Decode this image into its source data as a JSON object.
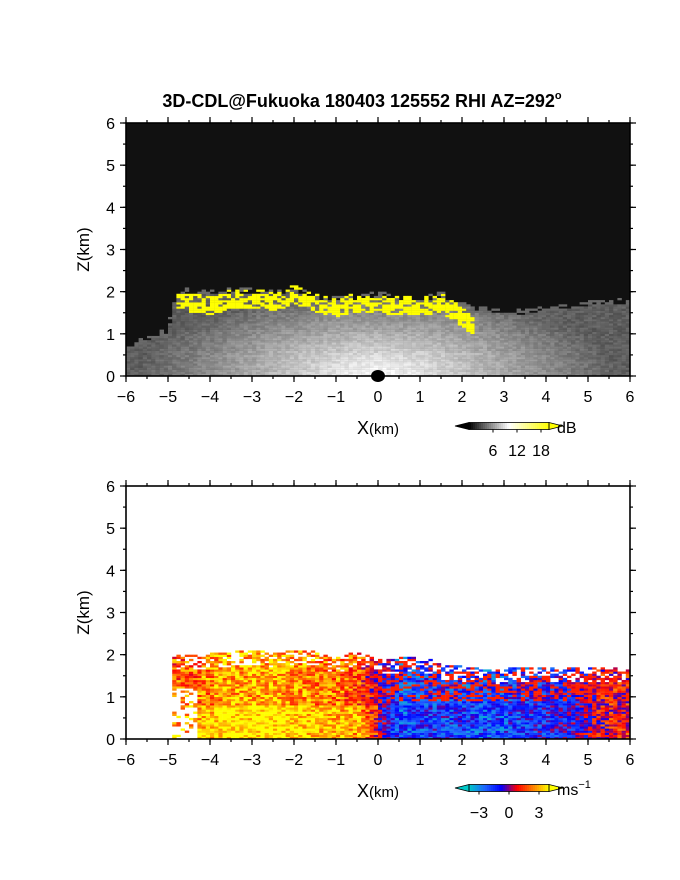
{
  "title": "3D-CDL@Fukuoka 180403 125552 RHI AZ=292",
  "title_degree_mark": "o",
  "chart_data": [
    {
      "type": "heatmap",
      "id": "snr",
      "xlabel_main": "X",
      "xlabel_unit": "(km)",
      "ylabel": "Z(km)",
      "xlim": [
        -6,
        6
      ],
      "ylim": [
        0,
        6
      ],
      "xticks": [
        -6,
        -5,
        -4,
        -3,
        -2,
        -1,
        0,
        1,
        2,
        3,
        4,
        5,
        6
      ],
      "yticks": [
        0,
        1,
        2,
        3,
        4,
        5,
        6
      ],
      "background": "#111111",
      "high_color": "#ffff00",
      "colorbar": {
        "unit": "dB",
        "tick_values": [
          6,
          12,
          18
        ],
        "tick_labels": [
          "6",
          "12",
          "18"
        ],
        "range": [
          0,
          20
        ],
        "colors": [
          "#000000",
          "#ffffff",
          "#ffff00"
        ]
      },
      "layer_top_km": [
        [
          -6.0,
          0.6
        ],
        [
          -5.0,
          1.0
        ],
        [
          -4.8,
          1.95
        ],
        [
          -4.0,
          1.9
        ],
        [
          -3.5,
          1.95
        ],
        [
          -3.0,
          1.95
        ],
        [
          -2.5,
          1.9
        ],
        [
          -2.0,
          2.0
        ],
        [
          -1.5,
          1.8
        ],
        [
          -1.0,
          1.75
        ],
        [
          -0.5,
          1.8
        ],
        [
          0.0,
          1.85
        ],
        [
          0.5,
          1.8
        ],
        [
          1.0,
          1.75
        ],
        [
          1.5,
          1.85
        ],
        [
          2.0,
          1.65
        ],
        [
          2.5,
          1.5
        ],
        [
          3.0,
          1.45
        ],
        [
          3.5,
          1.45
        ],
        [
          4.0,
          1.5
        ],
        [
          4.5,
          1.55
        ],
        [
          5.0,
          1.65
        ],
        [
          5.5,
          1.7
        ],
        [
          6.0,
          1.7
        ]
      ],
      "high_snr_top_km": [
        [
          -4.8,
          2.05
        ],
        [
          -4.5,
          1.95
        ],
        [
          -4.0,
          1.85
        ],
        [
          -3.5,
          2.05
        ],
        [
          -3.0,
          2.05
        ],
        [
          -2.5,
          1.95
        ],
        [
          -2.0,
          2.15
        ],
        [
          -1.5,
          1.95
        ],
        [
          -1.0,
          1.8
        ],
        [
          -0.5,
          1.95
        ],
        [
          0.0,
          1.85
        ],
        [
          0.5,
          1.9
        ],
        [
          1.0,
          1.85
        ],
        [
          1.5,
          1.95
        ],
        [
          2.0,
          1.6
        ],
        [
          2.3,
          1.3
        ]
      ]
    },
    {
      "type": "heatmap",
      "id": "velocity",
      "xlabel_main": "X",
      "xlabel_unit": "(km)",
      "ylabel": "Z(km)",
      "xlim": [
        -6,
        6
      ],
      "ylim": [
        0,
        6
      ],
      "xticks": [
        -6,
        -5,
        -4,
        -3,
        -2,
        -1,
        0,
        1,
        2,
        3,
        4,
        5,
        6
      ],
      "yticks": [
        0,
        1,
        2,
        3,
        4,
        5,
        6
      ],
      "background": "#ffffff",
      "colorbar": {
        "unit": "ms",
        "unit_exponent": "−1",
        "tick_values": [
          -3,
          0,
          3
        ],
        "tick_labels": [
          "−3",
          "0",
          "3"
        ],
        "range": [
          -4,
          4
        ],
        "colors": [
          "#00c8c8",
          "#1e64ff",
          "#0000ff",
          "#ff0000",
          "#ff8000",
          "#ffff00"
        ]
      },
      "echo_top_km": [
        [
          -4.9,
          1.95
        ],
        [
          -4.5,
          2.0
        ],
        [
          -4.0,
          2.0
        ],
        [
          -3.5,
          2.05
        ],
        [
          -3.0,
          2.1
        ],
        [
          -2.5,
          2.0
        ],
        [
          -2.0,
          2.1
        ],
        [
          -1.5,
          2.05
        ],
        [
          -1.0,
          1.9
        ],
        [
          -0.5,
          2.05
        ],
        [
          0.0,
          1.85
        ],
        [
          0.5,
          1.9
        ],
        [
          1.0,
          1.95
        ],
        [
          1.5,
          1.75
        ],
        [
          2.0,
          1.7
        ],
        [
          2.5,
          1.65
        ],
        [
          3.0,
          1.65
        ],
        [
          3.5,
          1.7
        ],
        [
          4.0,
          1.7
        ],
        [
          4.5,
          1.7
        ],
        [
          5.0,
          1.7
        ],
        [
          5.5,
          1.7
        ],
        [
          6.0,
          1.65
        ]
      ],
      "dominant_radial_velocity_ms": [
        [
          -4.5,
          2.0
        ],
        [
          -3.5,
          3.0
        ],
        [
          -2.5,
          3.0
        ],
        [
          -1.5,
          2.5
        ],
        [
          -0.5,
          2.0
        ],
        [
          0.5,
          -2.0
        ],
        [
          1.5,
          -1.5
        ],
        [
          2.5,
          -2.0
        ],
        [
          3.5,
          -1.5
        ],
        [
          4.5,
          -1.0
        ],
        [
          5.5,
          1.0
        ]
      ]
    }
  ]
}
